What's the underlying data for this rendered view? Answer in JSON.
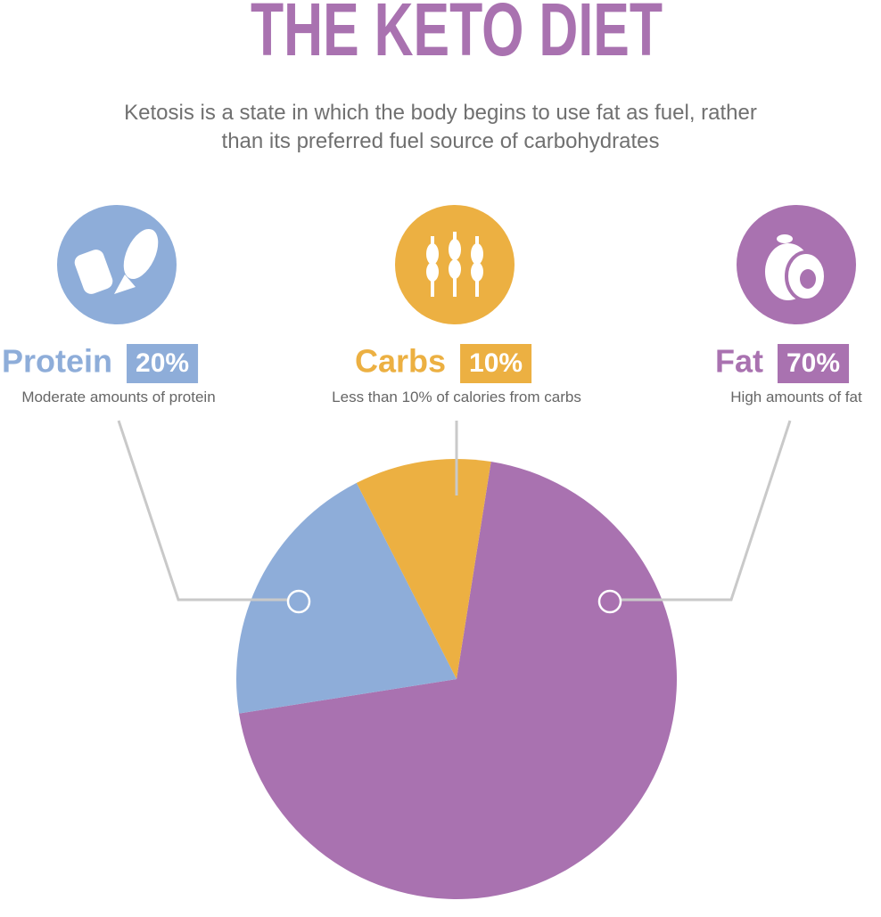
{
  "chart_data": {
    "type": "pie",
    "title": "THE KETO DIET",
    "subtitle": "Ketosis is a state in which the body begins to use fat as fuel, rather than its preferred fuel source of carbohydrates",
    "categories": [
      "Protein",
      "Carbs",
      "Fat"
    ],
    "values": [
      20,
      10,
      70
    ],
    "value_labels": [
      "20%",
      "10%",
      "70%"
    ],
    "descriptions": [
      "Moderate amounts of protein",
      "Less than 10% of calories from carbs",
      "High amounts of fat"
    ],
    "colors": [
      "#8eadd9",
      "#ecb042",
      "#a972b0"
    ]
  }
}
